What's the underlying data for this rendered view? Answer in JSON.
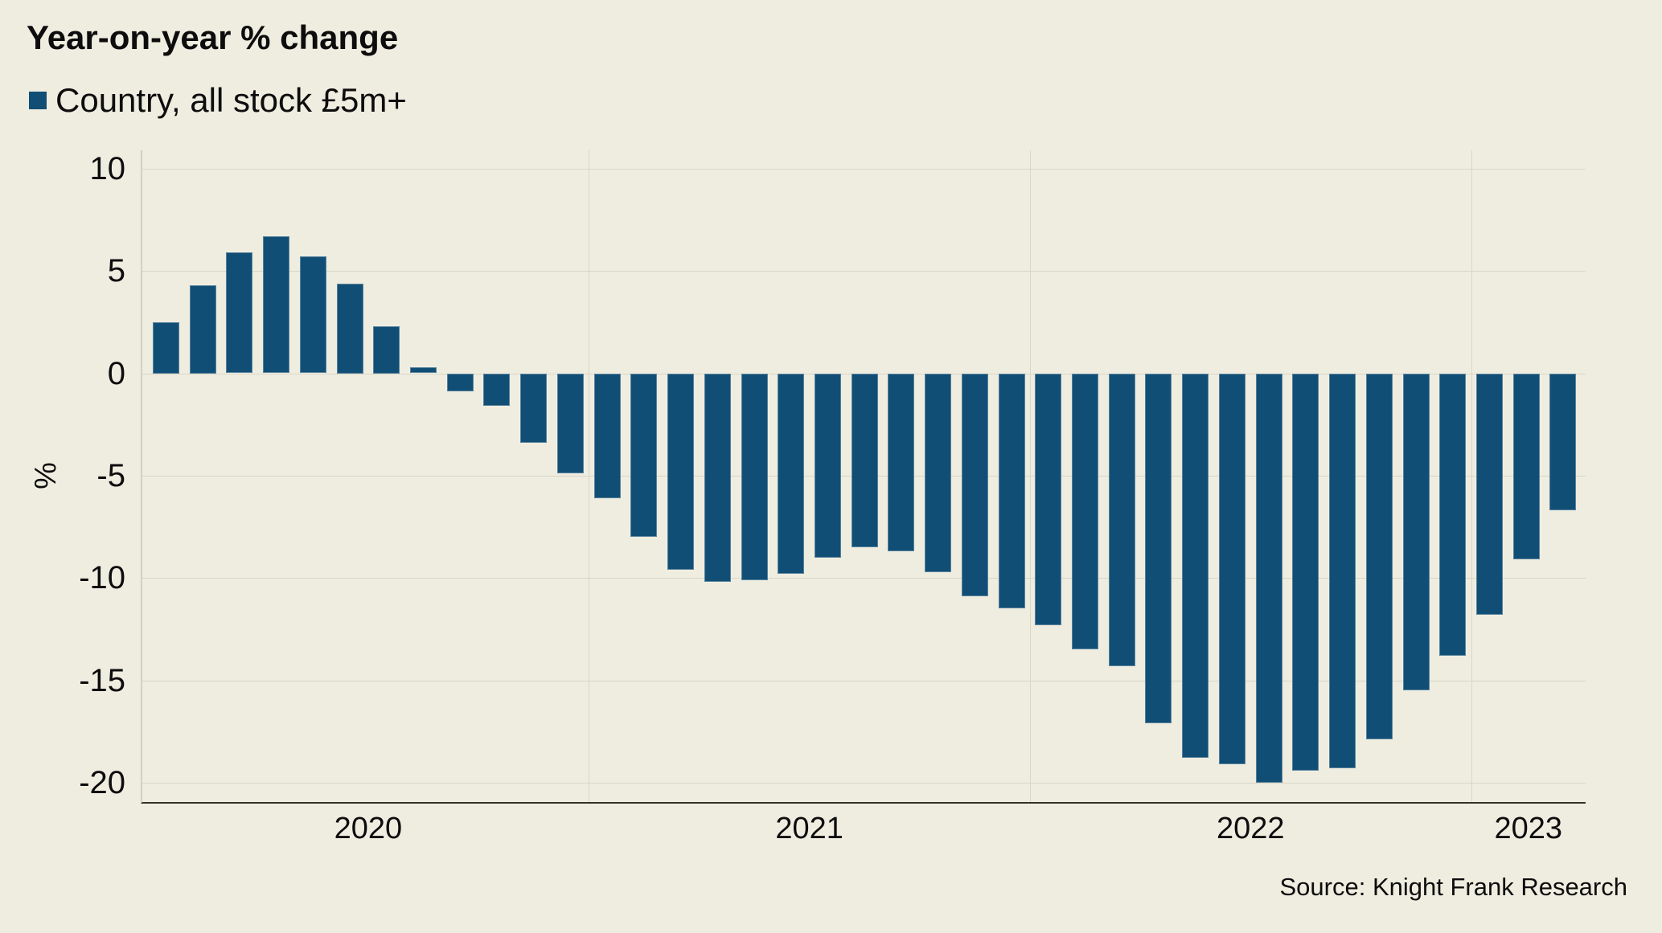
{
  "header": {
    "title": "Year-on-year % change"
  },
  "legend": {
    "label": "Country, all stock £5m+",
    "marker_color": "#114E75"
  },
  "axis": {
    "unit_label": "%"
  },
  "source": {
    "text": "Source: Knight Frank Research"
  },
  "chart_data": {
    "type": "bar",
    "title": "Year-on-year % change",
    "series_name": "Country, all stock £5m+",
    "x": [
      "2020-01",
      "2020-02",
      "2020-03",
      "2020-04",
      "2020-05",
      "2020-06",
      "2020-07",
      "2020-08",
      "2020-09",
      "2020-10",
      "2020-11",
      "2020-12",
      "2021-01",
      "2021-02",
      "2021-03",
      "2021-04",
      "2021-05",
      "2021-06",
      "2021-07",
      "2021-08",
      "2021-09",
      "2021-10",
      "2021-11",
      "2021-12",
      "2022-01",
      "2022-02",
      "2022-03",
      "2022-04",
      "2022-05",
      "2022-06",
      "2022-07",
      "2022-08",
      "2022-09",
      "2022-10",
      "2022-11",
      "2022-12",
      "2023-01",
      "2023-02",
      "2023-03"
    ],
    "values": [
      2.5,
      4.3,
      5.9,
      6.7,
      5.7,
      4.4,
      2.3,
      0.3,
      -0.9,
      -1.6,
      -3.4,
      -4.9,
      -6.1,
      -8.0,
      -9.6,
      -10.2,
      -10.1,
      -9.8,
      -9.0,
      -8.5,
      -8.7,
      -9.7,
      -10.9,
      -11.5,
      -12.3,
      -13.5,
      -14.3,
      -17.1,
      -18.8,
      -19.1,
      -20.0,
      -19.4,
      -19.3,
      -17.9,
      -15.5,
      -13.8,
      -11.8,
      -9.1,
      -6.7
    ],
    "xlabel": "",
    "ylabel": "%",
    "yticks": [
      10,
      5,
      0,
      -5,
      -10,
      -15,
      -20
    ],
    "xticks": [
      "2020",
      "2021",
      "2022",
      "2023"
    ],
    "ylim": [
      -20.95,
      10.9
    ],
    "grid": "horizontal gridlines at yticks, vertical gridlines at year boundaries",
    "legend_position": "top-left",
    "bar_color": "#114E75",
    "background_color": "#EFEDE0",
    "gridline_color": "#d8d6c4"
  }
}
